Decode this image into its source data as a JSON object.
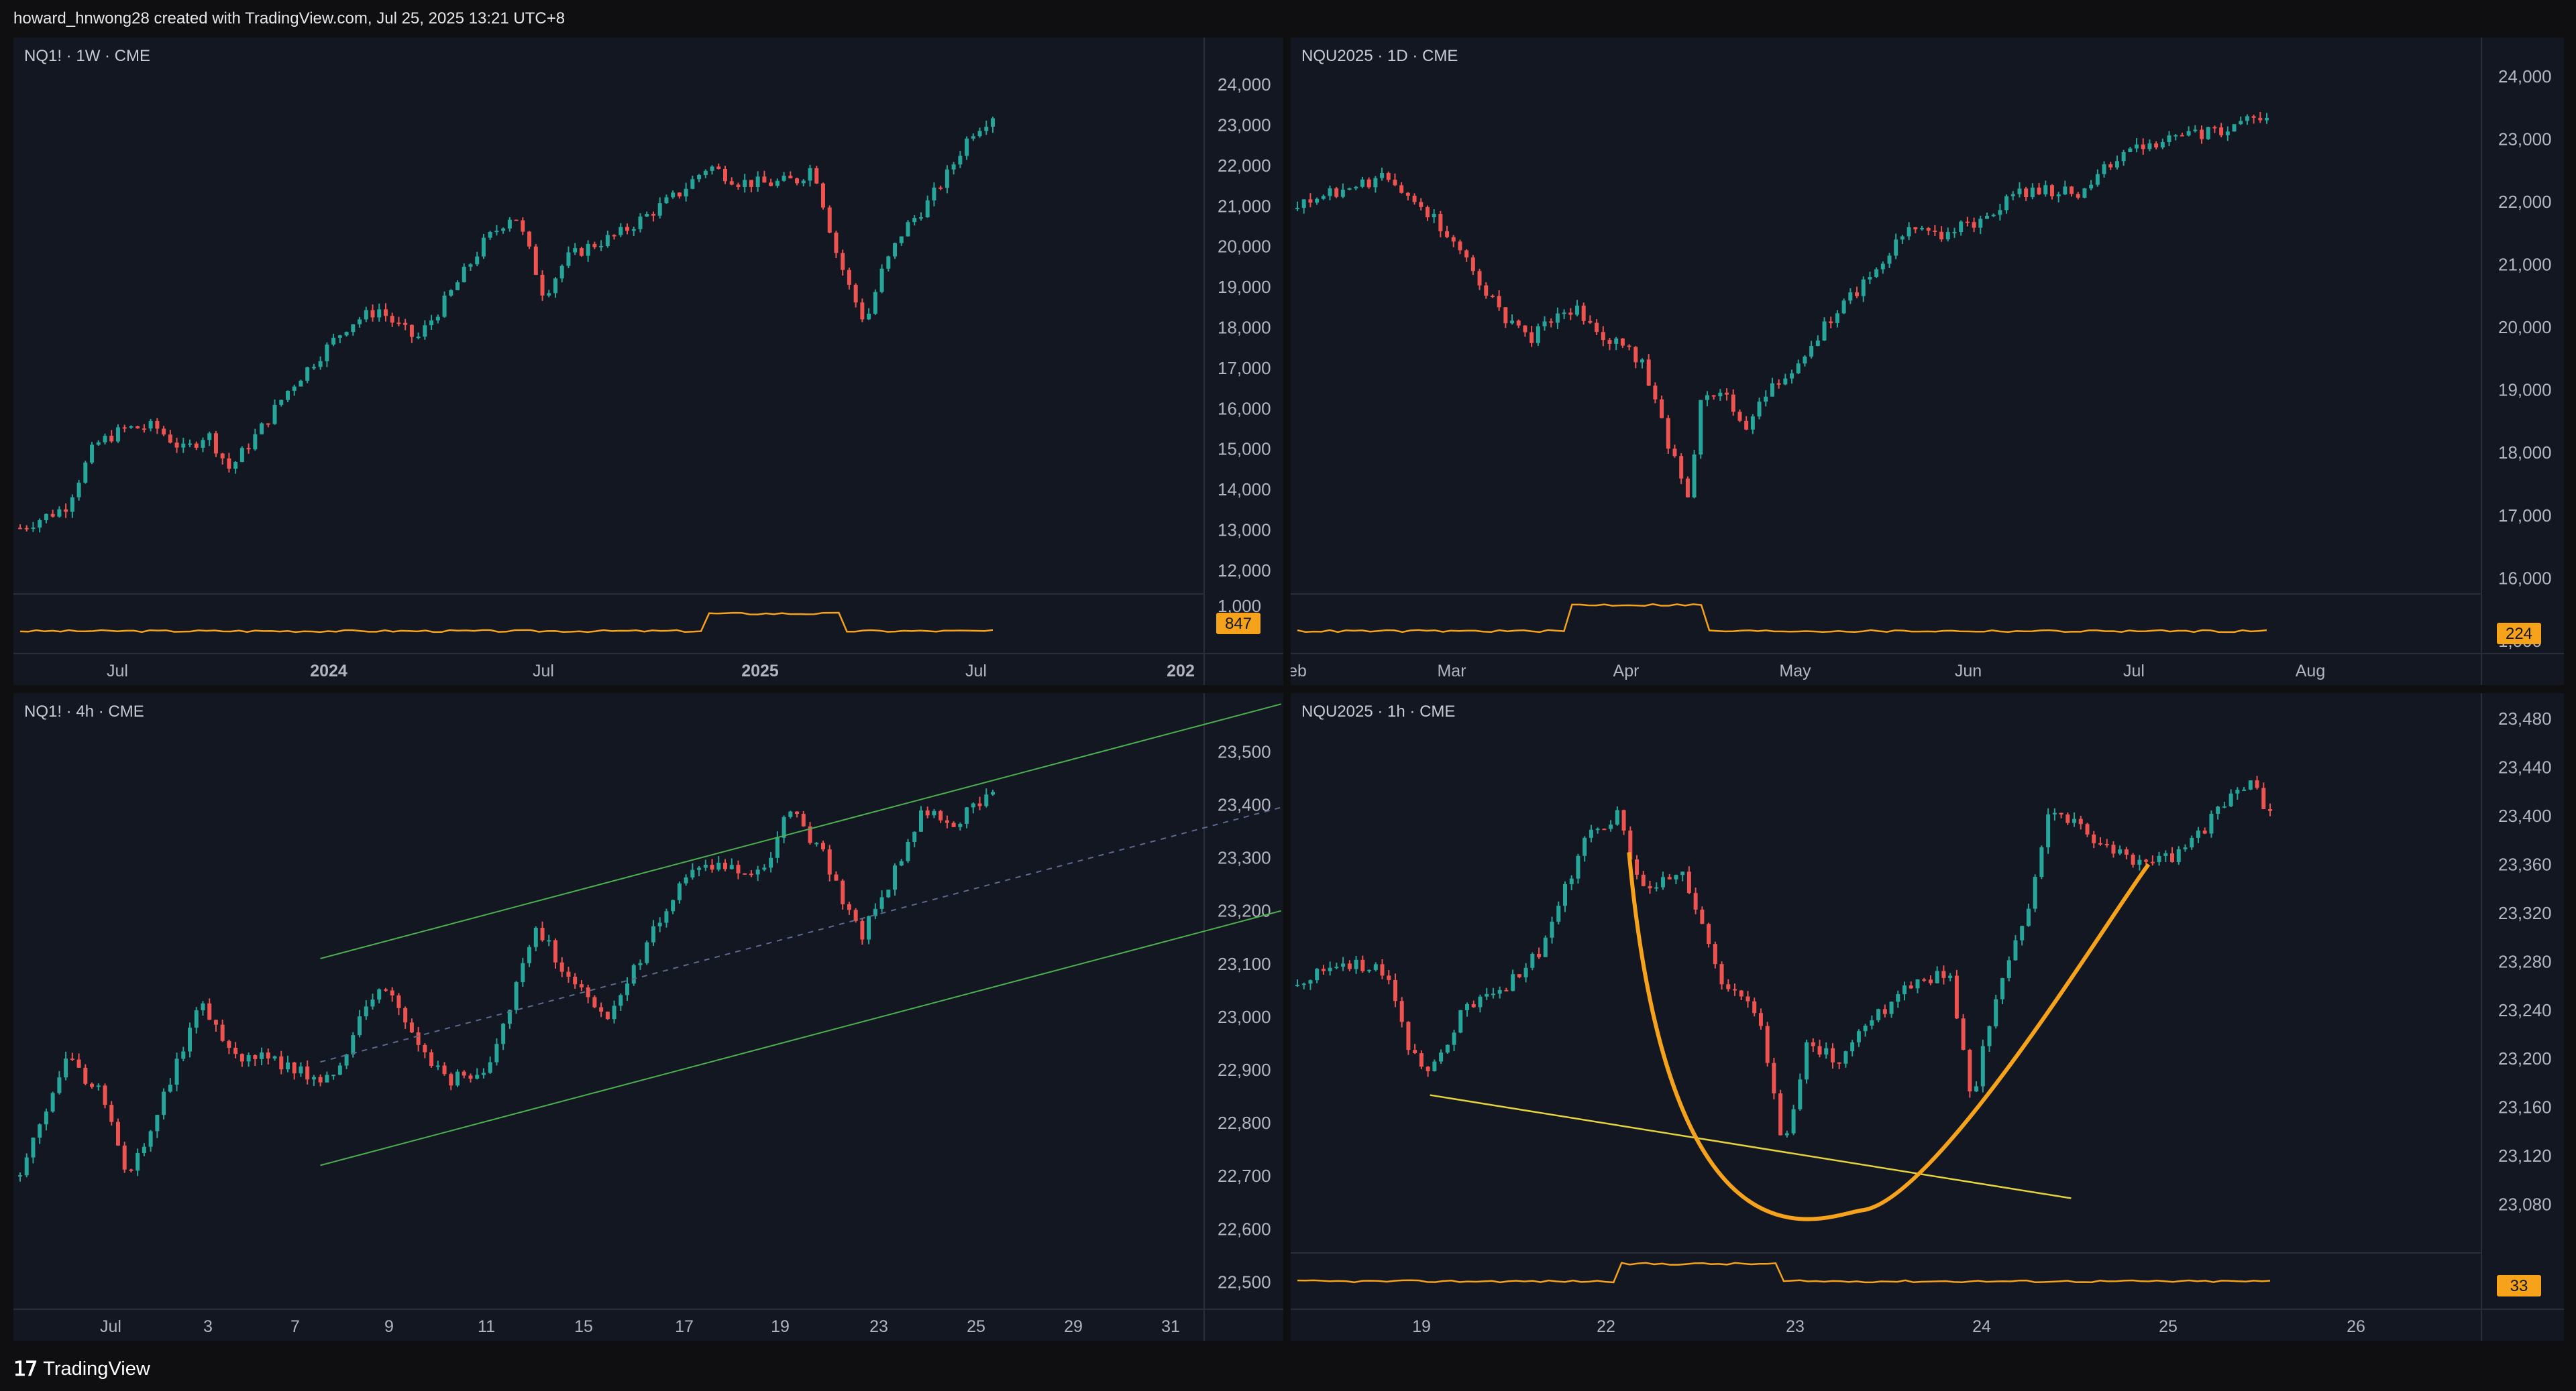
{
  "header": {
    "text": "howard_hnwong28 created with TradingView.com, Jul 25, 2025 13:21 UTC+8"
  },
  "footer": {
    "logo_icon": "tradingview-logo-icon",
    "brand": "TradingView"
  },
  "colors": {
    "up": "#26a69a",
    "down": "#ef5350",
    "volume": "#f7a21b",
    "channel": "#4caf50",
    "trend": "#e6d23c",
    "arc": "#f7a21b",
    "text": "#b2b5be"
  },
  "chart_data": [
    {
      "id": "w1",
      "label": "NQ1! · 1W · CME",
      "type": "candlestick",
      "ylabels": [
        "24,000",
        "23,000",
        "22,000",
        "21,000",
        "20,000",
        "19,000",
        "18,000",
        "17,000",
        "16,000",
        "15,000",
        "14,000",
        "13,000",
        "12,000",
        "1,000"
      ],
      "xlabels": [
        "Jul",
        "2024",
        "Jul",
        "2025",
        "Jul",
        "202"
      ],
      "badge": "847",
      "ylim": [
        11500,
        24500
      ],
      "close_path": [
        [
          0,
          13050
        ],
        [
          6,
          13550
        ],
        [
          10,
          15100
        ],
        [
          14,
          15500
        ],
        [
          18,
          15550
        ],
        [
          22,
          14950
        ],
        [
          25,
          15400
        ],
        [
          28,
          14500
        ],
        [
          32,
          15450
        ],
        [
          36,
          16500
        ],
        [
          40,
          17300
        ],
        [
          44,
          18100
        ],
        [
          48,
          18450
        ],
        [
          50,
          18100
        ],
        [
          53,
          17700
        ],
        [
          57,
          18700
        ],
        [
          62,
          20100
        ],
        [
          66,
          20850
        ],
        [
          68,
          19900
        ],
        [
          70,
          18800
        ],
        [
          73,
          19700
        ],
        [
          76,
          20000
        ],
        [
          80,
          20300
        ],
        [
          84,
          20800
        ],
        [
          88,
          21300
        ],
        [
          92,
          22000
        ],
        [
          96,
          21600
        ],
        [
          100,
          21550
        ],
        [
          104,
          21650
        ],
        [
          106,
          22000
        ],
        [
          109,
          19900
        ],
        [
          111,
          18900
        ],
        [
          113,
          18100
        ],
        [
          115,
          19300
        ],
        [
          118,
          20400
        ],
        [
          121,
          21000
        ],
        [
          124,
          21800
        ],
        [
          127,
          22800
        ],
        [
          130,
          23250
        ]
      ]
    },
    {
      "id": "d1",
      "label": "NQU2025 · 1D · CME",
      "type": "candlestick",
      "ylabels": [
        "24,000",
        "23,000",
        "22,000",
        "21,000",
        "20,000",
        "19,000",
        "18,000",
        "17,000",
        "16,000",
        "1,000"
      ],
      "xlabels": [
        "eb",
        "Mar",
        "Apr",
        "May",
        "Jun",
        "Jul",
        "Aug"
      ],
      "badge": "224",
      "ylim": [
        15800,
        24300
      ],
      "close_path": [
        [
          0,
          21900
        ],
        [
          4,
          22200
        ],
        [
          8,
          22400
        ],
        [
          10,
          22100
        ],
        [
          13,
          21500
        ],
        [
          16,
          20700
        ],
        [
          18,
          20100
        ],
        [
          20,
          19800
        ],
        [
          22,
          20100
        ],
        [
          24,
          20300
        ],
        [
          26,
          19900
        ],
        [
          28,
          19700
        ],
        [
          30,
          19400
        ],
        [
          32,
          18200
        ],
        [
          34,
          17300
        ],
        [
          35,
          19000
        ],
        [
          37,
          18900
        ],
        [
          39,
          18400
        ],
        [
          41,
          19000
        ],
        [
          44,
          19600
        ],
        [
          47,
          20300
        ],
        [
          50,
          20900
        ],
        [
          53,
          21600
        ],
        [
          56,
          21500
        ],
        [
          59,
          21700
        ],
        [
          62,
          22100
        ],
        [
          65,
          22200
        ],
        [
          68,
          22100
        ],
        [
          70,
          22600
        ],
        [
          73,
          22900
        ],
        [
          76,
          23000
        ],
        [
          79,
          23100
        ],
        [
          82,
          23250
        ],
        [
          84,
          23350
        ]
      ]
    },
    {
      "id": "h4",
      "label": "NQ1! · 4h · CME",
      "type": "candlestick",
      "ylabels": [
        "23,500",
        "23,400",
        "23,300",
        "23,200",
        "23,100",
        "23,000",
        "22,900",
        "22,800",
        "22,700",
        "22,600",
        "22,500"
      ],
      "xlabels": [
        "Jul",
        "3",
        "7",
        "9",
        "11",
        "15",
        "17",
        "19",
        "23",
        "25",
        "29",
        "31"
      ],
      "ylim": [
        22460,
        23560
      ],
      "close_path": [
        [
          0,
          22700
        ],
        [
          4,
          22920
        ],
        [
          7,
          22850
        ],
        [
          9,
          22690
        ],
        [
          11,
          22800
        ],
        [
          15,
          23020
        ],
        [
          18,
          22930
        ],
        [
          22,
          22910
        ],
        [
          26,
          22880
        ],
        [
          30,
          23070
        ],
        [
          33,
          22950
        ],
        [
          36,
          22880
        ],
        [
          39,
          22910
        ],
        [
          43,
          23170
        ],
        [
          46,
          23060
        ],
        [
          49,
          22990
        ],
        [
          52,
          23130
        ],
        [
          55,
          23260
        ],
        [
          58,
          23290
        ],
        [
          62,
          23270
        ],
        [
          64,
          23400
        ],
        [
          67,
          23300
        ],
        [
          70,
          23150
        ],
        [
          73,
          23280
        ],
        [
          75,
          23380
        ],
        [
          78,
          23370
        ],
        [
          81,
          23420
        ]
      ],
      "channel": {
        "upper": [
          [
            25,
            23110
          ],
          [
            105,
            23590
          ]
        ],
        "lower": [
          [
            25,
            22720
          ],
          [
            105,
            23200
          ]
        ],
        "mid": [
          [
            25,
            22915
          ],
          [
            105,
            23395
          ]
        ]
      }
    },
    {
      "id": "h1",
      "label": "NQU2025 · 1h · CME",
      "type": "candlestick",
      "ylabels": [
        "23,480",
        "23,440",
        "23,400",
        "23,360",
        "23,320",
        "23,280",
        "23,240",
        "23,200",
        "23,160",
        "23,120",
        "23,080"
      ],
      "xlabels": [
        "19",
        "22",
        "23",
        "24",
        "25",
        "26"
      ],
      "badge": "33",
      "ylim": [
        23040,
        23490
      ],
      "close_path": [
        [
          0,
          23260
        ],
        [
          4,
          23280
        ],
        [
          8,
          23270
        ],
        [
          10,
          23210
        ],
        [
          12,
          23190
        ],
        [
          15,
          23240
        ],
        [
          19,
          23260
        ],
        [
          22,
          23290
        ],
        [
          26,
          23380
        ],
        [
          29,
          23400
        ],
        [
          31,
          23340
        ],
        [
          35,
          23350
        ],
        [
          38,
          23270
        ],
        [
          42,
          23230
        ],
        [
          44,
          23120
        ],
        [
          46,
          23210
        ],
        [
          49,
          23200
        ],
        [
          52,
          23230
        ],
        [
          55,
          23260
        ],
        [
          59,
          23270
        ],
        [
          61,
          23160
        ],
        [
          63,
          23250
        ],
        [
          66,
          23320
        ],
        [
          68,
          23400
        ],
        [
          71,
          23390
        ],
        [
          74,
          23370
        ],
        [
          77,
          23360
        ],
        [
          80,
          23370
        ],
        [
          83,
          23400
        ],
        [
          86,
          23430
        ],
        [
          88,
          23400
        ]
      ],
      "trendline": [
        [
          12,
          23170
        ],
        [
          70,
          23085
        ]
      ],
      "arc": {
        "left": [
          30,
          23370
        ],
        "bottom": [
          51,
          23075
        ],
        "right": [
          77,
          23360
        ]
      }
    }
  ]
}
